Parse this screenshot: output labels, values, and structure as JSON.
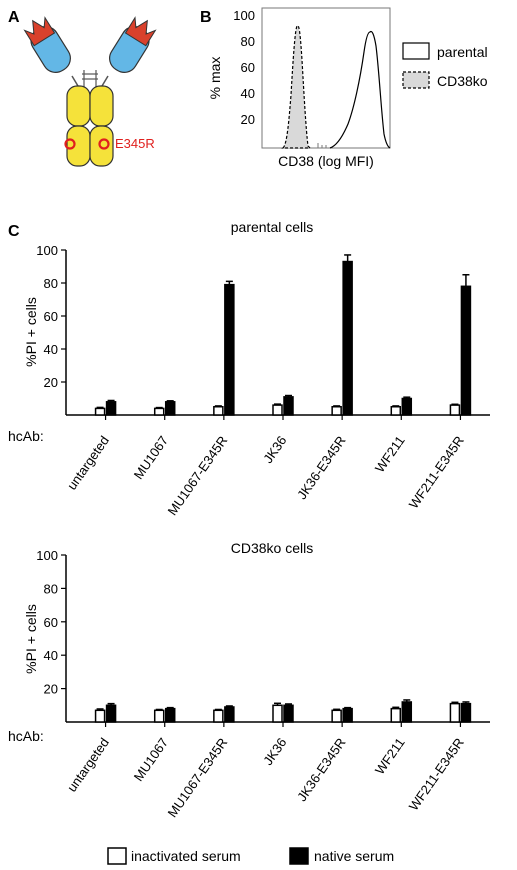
{
  "panels": {
    "A": {
      "letter": "A",
      "mutation_label": "E345R",
      "colors": {
        "cdr": "#d9412c",
        "vhh": "#63b7e6",
        "fc": "#f5e23a",
        "mutation": "#e0201e"
      }
    },
    "B": {
      "letter": "B",
      "ylabel": "% max",
      "xlabel": "CD38 (log MFI)",
      "yticks": [
        "100",
        "80",
        "60",
        "40",
        "20"
      ],
      "legend": [
        "parental",
        "CD38ko"
      ]
    },
    "C": {
      "letter": "C"
    }
  },
  "hcab_label": "hcAb:",
  "legend": {
    "inactivated": "inactivated serum",
    "native": "native serum"
  },
  "colors": {
    "inactivated": "#ffffff",
    "native": "#000000",
    "axis": "#000000"
  },
  "chart_data": [
    {
      "type": "bar",
      "title": "parental cells",
      "ylabel": "%PI + cells",
      "ylim": [
        0,
        100
      ],
      "yticks": [
        20,
        40,
        60,
        80,
        100
      ],
      "categories": [
        "untargeted",
        "MU1067",
        "MU1067-E345R",
        "JK36",
        "JK36-E345R",
        "WF211",
        "WF211-E345R"
      ],
      "series": [
        {
          "name": "inactivated serum",
          "values": [
            4,
            4,
            5,
            6,
            5,
            5,
            6
          ],
          "errors": [
            0.6,
            0.5,
            0.5,
            0.6,
            0.5,
            0.5,
            0.5
          ]
        },
        {
          "name": "native serum",
          "values": [
            8,
            8,
            79,
            11,
            93,
            10,
            78
          ],
          "errors": [
            0.8,
            0.6,
            2,
            0.8,
            4,
            0.8,
            7
          ]
        }
      ]
    },
    {
      "type": "bar",
      "title": "CD38ko cells",
      "ylabel": "%PI + cells",
      "ylim": [
        0,
        100
      ],
      "yticks": [
        20,
        40,
        60,
        80,
        100
      ],
      "categories": [
        "untargeted",
        "MU1067",
        "MU1067-E345R",
        "JK36",
        "JK36-E345R",
        "WF211",
        "WF211-E345R"
      ],
      "series": [
        {
          "name": "inactivated serum",
          "values": [
            7,
            7,
            7,
            10,
            7,
            8,
            11
          ],
          "errors": [
            0.8,
            0.5,
            0.5,
            1.2,
            0.6,
            0.8,
            0.8
          ]
        },
        {
          "name": "native serum",
          "values": [
            10,
            8,
            9,
            10,
            8,
            12,
            11
          ],
          "errors": [
            1,
            0.6,
            0.6,
            0.8,
            0.6,
            1.2,
            1
          ]
        }
      ]
    }
  ]
}
